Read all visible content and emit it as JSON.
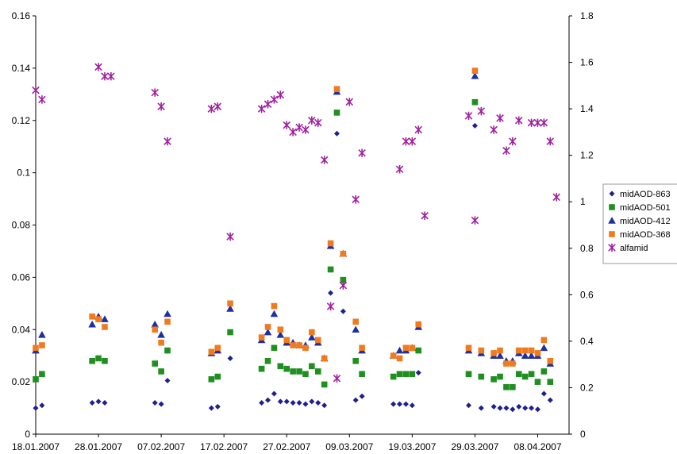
{
  "chart_data": {
    "type": "scatter",
    "title": "",
    "xlabel": "",
    "ylabel": "",
    "y2label": "",
    "x_ticks": [
      "18.01.2007",
      "28.01.2007",
      "07.02.2007",
      "17.02.2007",
      "27.02.2007",
      "09.03.2007",
      "19.03.2007",
      "29.03.2007",
      "08.04.2007"
    ],
    "xlim": [
      "18.01.2007",
      "13.04.2007"
    ],
    "ylim": [
      0,
      0.16
    ],
    "y_ticks": [
      "0",
      "0.02",
      "0.04",
      "0.06",
      "0.08",
      "0.1",
      "0.12",
      "0.14",
      "0.16"
    ],
    "y2lim": [
      0,
      1.8
    ],
    "y2_ticks": [
      "0",
      "0.2",
      "0.4",
      "0.6",
      "0.8",
      "1",
      "1.2",
      "1.4",
      "1.6",
      "1.8"
    ],
    "grid": false,
    "legend_position": "right",
    "series": [
      {
        "name": "midAOD-863",
        "axis": "left",
        "marker": "diamond",
        "color": "#1f1f8f",
        "x": [
          "18.01.2007",
          "19.01.2007",
          "27.01.2007",
          "28.01.2007",
          "29.01.2007",
          "06.02.2007",
          "07.02.2007",
          "08.02.2007",
          "15.02.2007",
          "16.02.2007",
          "18.02.2007",
          "23.02.2007",
          "24.02.2007",
          "25.02.2007",
          "26.02.2007",
          "27.02.2007",
          "28.02.2007",
          "01.03.2007",
          "02.03.2007",
          "03.03.2007",
          "04.03.2007",
          "05.03.2007",
          "06.03.2007",
          "07.03.2007",
          "08.03.2007",
          "10.03.2007",
          "11.03.2007",
          "16.03.2007",
          "17.03.2007",
          "18.03.2007",
          "19.03.2007",
          "20.03.2007",
          "28.03.2007",
          "29.03.2007",
          "30.03.2007",
          "01.04.2007",
          "02.04.2007",
          "03.04.2007",
          "04.04.2007",
          "05.04.2007",
          "06.04.2007",
          "07.04.2007",
          "08.04.2007",
          "09.04.2007",
          "10.04.2007"
        ],
        "y": [
          0.01,
          0.011,
          0.012,
          0.0125,
          0.012,
          0.012,
          0.0115,
          0.0205,
          0.01,
          0.0105,
          0.029,
          0.012,
          0.013,
          0.0155,
          0.0125,
          0.0125,
          0.012,
          0.012,
          0.0115,
          0.0125,
          0.012,
          0.011,
          0.054,
          0.115,
          0.047,
          0.013,
          0.0145,
          0.0115,
          0.0115,
          0.0115,
          0.011,
          0.0235,
          0.011,
          0.118,
          0.01,
          0.0105,
          0.01,
          0.01,
          0.0095,
          0.0105,
          0.01,
          0.01,
          0.0095,
          0.0155,
          0.013
        ]
      },
      {
        "name": "midAOD-501",
        "axis": "left",
        "marker": "square",
        "color": "#1f8f1f",
        "x": [
          "18.01.2007",
          "19.01.2007",
          "27.01.2007",
          "28.01.2007",
          "29.01.2007",
          "06.02.2007",
          "07.02.2007",
          "08.02.2007",
          "15.02.2007",
          "16.02.2007",
          "18.02.2007",
          "23.02.2007",
          "24.02.2007",
          "25.02.2007",
          "26.02.2007",
          "27.02.2007",
          "28.02.2007",
          "01.03.2007",
          "02.03.2007",
          "03.03.2007",
          "04.03.2007",
          "05.03.2007",
          "06.03.2007",
          "07.03.2007",
          "08.03.2007",
          "10.03.2007",
          "11.03.2007",
          "16.03.2007",
          "17.03.2007",
          "18.03.2007",
          "19.03.2007",
          "20.03.2007",
          "28.03.2007",
          "29.03.2007",
          "30.03.2007",
          "01.04.2007",
          "02.04.2007",
          "03.04.2007",
          "04.04.2007",
          "05.04.2007",
          "06.04.2007",
          "07.04.2007",
          "08.04.2007",
          "09.04.2007",
          "10.04.2007"
        ],
        "y": [
          0.021,
          0.023,
          0.028,
          0.029,
          0.028,
          0.027,
          0.024,
          0.032,
          0.021,
          0.022,
          0.039,
          0.025,
          0.028,
          0.033,
          0.026,
          0.025,
          0.024,
          0.024,
          0.023,
          0.026,
          0.024,
          0.019,
          0.063,
          0.123,
          0.059,
          0.028,
          0.023,
          0.022,
          0.023,
          0.023,
          0.023,
          0.032,
          0.023,
          0.127,
          0.022,
          0.021,
          0.022,
          0.018,
          0.018,
          0.023,
          0.022,
          0.023,
          0.02,
          0.024,
          0.02
        ]
      },
      {
        "name": "midAOD-412",
        "axis": "left",
        "marker": "triangle",
        "color": "#1f2f9f",
        "x": [
          "18.01.2007",
          "19.01.2007",
          "27.01.2007",
          "28.01.2007",
          "29.01.2007",
          "06.02.2007",
          "07.02.2007",
          "08.02.2007",
          "15.02.2007",
          "16.02.2007",
          "18.02.2007",
          "23.02.2007",
          "24.02.2007",
          "25.02.2007",
          "26.02.2007",
          "27.02.2007",
          "28.02.2007",
          "01.03.2007",
          "02.03.2007",
          "03.03.2007",
          "04.03.2007",
          "05.03.2007",
          "06.03.2007",
          "07.03.2007",
          "08.03.2007",
          "10.03.2007",
          "11.03.2007",
          "16.03.2007",
          "17.03.2007",
          "18.03.2007",
          "19.03.2007",
          "20.03.2007",
          "28.03.2007",
          "29.03.2007",
          "30.03.2007",
          "01.04.2007",
          "02.04.2007",
          "03.04.2007",
          "04.04.2007",
          "05.04.2007",
          "06.04.2007",
          "07.04.2007",
          "08.04.2007",
          "09.04.2007",
          "10.04.2007"
        ],
        "y": [
          0.032,
          0.038,
          0.042,
          0.045,
          0.044,
          0.042,
          0.038,
          0.046,
          0.031,
          0.032,
          0.048,
          0.036,
          0.039,
          0.046,
          0.038,
          0.035,
          0.035,
          0.034,
          0.034,
          0.037,
          0.035,
          0.029,
          0.072,
          0.131,
          0.069,
          0.04,
          0.032,
          0.03,
          0.032,
          0.032,
          0.033,
          0.041,
          0.032,
          0.137,
          0.031,
          0.03,
          0.03,
          0.028,
          0.028,
          0.031,
          0.03,
          0.03,
          0.03,
          0.033,
          0.027
        ]
      },
      {
        "name": "midAOD-368",
        "axis": "left",
        "marker": "square",
        "color": "#f07a1e",
        "x": [
          "18.01.2007",
          "19.01.2007",
          "27.01.2007",
          "28.01.2007",
          "29.01.2007",
          "06.02.2007",
          "07.02.2007",
          "08.02.2007",
          "15.02.2007",
          "16.02.2007",
          "18.02.2007",
          "23.02.2007",
          "24.02.2007",
          "25.02.2007",
          "26.02.2007",
          "27.02.2007",
          "28.02.2007",
          "01.03.2007",
          "02.03.2007",
          "03.03.2007",
          "04.03.2007",
          "05.03.2007",
          "06.03.2007",
          "07.03.2007",
          "08.03.2007",
          "10.03.2007",
          "11.03.2007",
          "16.03.2007",
          "17.03.2007",
          "18.03.2007",
          "19.03.2007",
          "20.03.2007",
          "28.03.2007",
          "29.03.2007",
          "30.03.2007",
          "01.04.2007",
          "02.04.2007",
          "03.04.2007",
          "04.04.2007",
          "05.04.2007",
          "06.04.2007",
          "07.04.2007",
          "08.04.2007",
          "09.04.2007",
          "10.04.2007"
        ],
        "y": [
          0.033,
          0.034,
          0.045,
          0.044,
          0.041,
          0.04,
          0.035,
          0.043,
          0.0315,
          0.033,
          0.05,
          0.037,
          0.041,
          0.049,
          0.04,
          0.036,
          0.034,
          0.034,
          0.033,
          0.039,
          0.036,
          0.029,
          0.073,
          0.132,
          0.069,
          0.043,
          0.033,
          0.03,
          0.029,
          0.033,
          0.033,
          0.042,
          0.033,
          0.139,
          0.032,
          0.031,
          0.032,
          0.027,
          0.027,
          0.032,
          0.032,
          0.032,
          0.031,
          0.036,
          0.028
        ]
      },
      {
        "name": "alfamid",
        "axis": "right",
        "marker": "star",
        "color": "#a020a0",
        "x": [
          "18.01.2007",
          "19.01.2007",
          "28.01.2007",
          "29.01.2007",
          "30.01.2007",
          "06.02.2007",
          "07.02.2007",
          "08.02.2007",
          "15.02.2007",
          "16.02.2007",
          "18.02.2007",
          "23.02.2007",
          "24.02.2007",
          "25.02.2007",
          "26.02.2007",
          "27.02.2007",
          "28.02.2007",
          "01.03.2007",
          "02.03.2007",
          "03.03.2007",
          "04.03.2007",
          "05.03.2007",
          "06.03.2007",
          "07.03.2007",
          "08.03.2007",
          "09.03.2007",
          "10.03.2007",
          "11.03.2007",
          "17.03.2007",
          "18.03.2007",
          "19.03.2007",
          "20.03.2007",
          "21.03.2007",
          "28.03.2007",
          "29.03.2007",
          "30.03.2007",
          "01.04.2007",
          "02.04.2007",
          "03.04.2007",
          "04.04.2007",
          "05.04.2007",
          "07.04.2007",
          "08.04.2007",
          "09.04.2007",
          "10.04.2007",
          "11.04.2007"
        ],
        "y": [
          1.48,
          1.44,
          1.58,
          1.54,
          1.54,
          1.47,
          1.41,
          1.26,
          1.4,
          1.41,
          0.85,
          1.4,
          1.42,
          1.44,
          1.46,
          1.33,
          1.3,
          1.32,
          1.31,
          1.35,
          1.34,
          1.18,
          0.55,
          0.24,
          0.64,
          1.43,
          1.01,
          1.21,
          1.14,
          1.26,
          1.26,
          1.31,
          0.94,
          1.37,
          0.92,
          1.39,
          1.31,
          1.36,
          1.22,
          1.26,
          1.35,
          1.34,
          1.34,
          1.34,
          1.26,
          1.02
        ]
      }
    ]
  }
}
